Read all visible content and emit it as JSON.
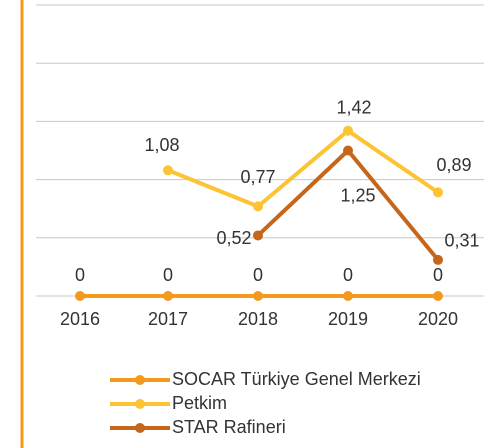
{
  "chart_data": {
    "type": "line",
    "categories": [
      "2016",
      "2017",
      "2018",
      "2019",
      "2020"
    ],
    "series": [
      {
        "name": "SOCAR Türkiye Genel Merkezi",
        "color": "#f39a1e",
        "values": [
          0,
          0,
          0,
          0,
          0
        ]
      },
      {
        "name": "Petkim",
        "color": "#fcc433",
        "values": [
          null,
          1.08,
          0.77,
          1.42,
          0.89
        ],
        "value_labels": [
          null,
          "1,08",
          "0,77",
          "1,42",
          "0,89"
        ]
      },
      {
        "name": "STAR Rafineri",
        "color": "#c5661b",
        "values": [
          null,
          null,
          0.52,
          1.25,
          0.31
        ],
        "value_labels": [
          null,
          null,
          "0,52",
          "1,25",
          "0,31"
        ]
      }
    ],
    "ylim": [
      0,
      2.5
    ],
    "yticks": [
      0,
      0.5,
      1,
      1.5,
      2,
      2.5
    ],
    "grid": true
  }
}
